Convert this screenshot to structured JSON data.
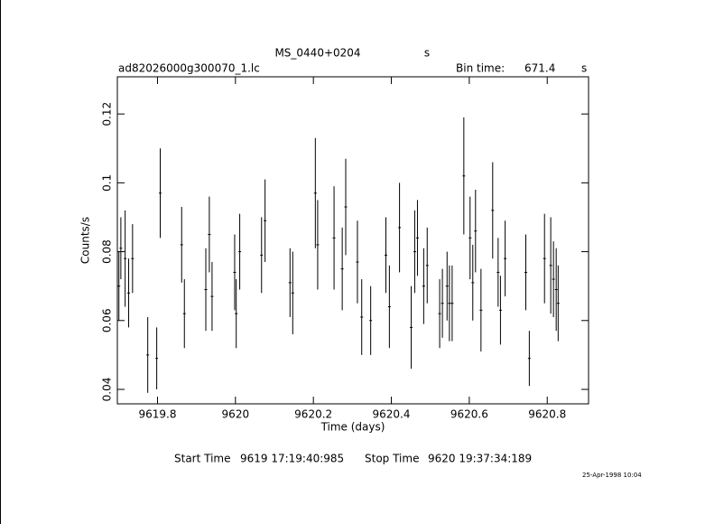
{
  "chart_data": {
    "type": "errorbar",
    "title": "MS_0440+0204",
    "title_unit": "s",
    "file_label": "ad82026000g300070_1.lc",
    "bin_time_label": "Bin time:",
    "bin_time": 671.4,
    "bin_time_unit": "s",
    "xlabel": "Time (days)",
    "ylabel": "Counts/s",
    "start_time_label": "Start Time",
    "start_time": "9619 17:19:40:985",
    "stop_time_label": "Stop Time",
    "stop_time": "9620 19:37:34:189",
    "timestamp": "25-Apr-1998 10:04",
    "color": "#000000",
    "xlim": [
      9619.697,
      9620.906
    ],
    "ylim": [
      0.0358,
      0.1308
    ],
    "xticks": [
      9619.8,
      9620,
      9620.2,
      9620.4,
      9620.6,
      9620.8
    ],
    "yticks": [
      0.04,
      0.06,
      0.08,
      0.1,
      0.12
    ],
    "x": [
      9619.701,
      9619.706,
      9619.717,
      9619.726,
      9619.736,
      9619.775,
      9619.798,
      9619.807,
      9619.862,
      9619.869,
      9619.924,
      9619.933,
      9619.94,
      9619.998,
      9620.002,
      9620.011,
      9620.067,
      9620.076,
      9620.14,
      9620.147,
      9620.205,
      9620.211,
      9620.253,
      9620.274,
      9620.283,
      9620.313,
      9620.324,
      9620.347,
      9620.386,
      9620.395,
      9620.421,
      9620.451,
      9620.46,
      9620.467,
      9620.483,
      9620.492,
      9620.524,
      9620.531,
      9620.543,
      9620.549,
      9620.556,
      9620.586,
      9620.602,
      9620.609,
      9620.616,
      9620.63,
      9620.66,
      9620.674,
      9620.68,
      9620.692,
      9620.745,
      9620.754,
      9620.793,
      9620.809,
      9620.816,
      9620.823,
      9620.828
    ],
    "values": [
      0.07,
      0.081,
      0.078,
      0.068,
      0.078,
      0.05,
      0.049,
      0.097,
      0.082,
      0.062,
      0.069,
      0.085,
      0.067,
      0.074,
      0.062,
      0.08,
      0.079,
      0.089,
      0.071,
      0.068,
      0.097,
      0.082,
      0.084,
      0.075,
      0.093,
      0.077,
      0.061,
      0.06,
      0.079,
      0.064,
      0.087,
      0.058,
      0.08,
      0.084,
      0.07,
      0.076,
      0.062,
      0.065,
      0.07,
      0.065,
      0.065,
      0.102,
      0.084,
      0.071,
      0.086,
      0.063,
      0.092,
      0.074,
      0.063,
      0.078,
      0.074,
      0.049,
      0.078,
      0.076,
      0.072,
      0.069,
      0.065
    ],
    "errors": [
      0.01,
      0.009,
      0.014,
      0.01,
      0.01,
      0.011,
      0.009,
      0.013,
      0.011,
      0.01,
      0.012,
      0.011,
      0.01,
      0.011,
      0.01,
      0.011,
      0.011,
      0.012,
      0.01,
      0.012,
      0.016,
      0.013,
      0.015,
      0.012,
      0.014,
      0.012,
      0.011,
      0.01,
      0.011,
      0.012,
      0.013,
      0.012,
      0.012,
      0.011,
      0.011,
      0.011,
      0.01,
      0.01,
      0.01,
      0.011,
      0.011,
      0.017,
      0.012,
      0.011,
      0.012,
      0.012,
      0.014,
      0.01,
      0.01,
      0.011,
      0.011,
      0.008,
      0.013,
      0.014,
      0.011,
      0.012,
      0.011
    ]
  }
}
